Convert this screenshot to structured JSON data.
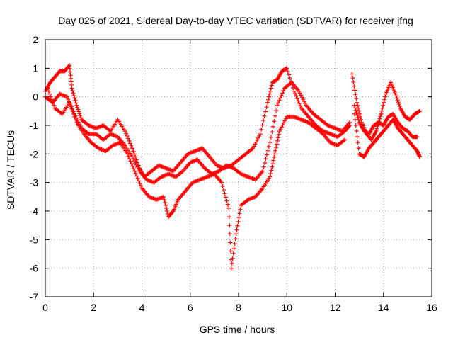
{
  "chart_data": {
    "type": "scatter",
    "title": "Day 025 of 2021, Sidereal Day-to-day VTEC variation (SDTVAR) for receiver jfng",
    "xlabel": "GPS time / hours",
    "ylabel": "SDTVAR / TECUs",
    "xlim": [
      0,
      16
    ],
    "ylim": [
      -7,
      2
    ],
    "xticks": [
      "0",
      "2",
      "4",
      "6",
      "8",
      "10",
      "12",
      "14",
      "16"
    ],
    "yticks": [
      "-7",
      "-6",
      "-5",
      "-4",
      "-3",
      "-2",
      "-1",
      "0",
      "1",
      "2"
    ],
    "grid": true,
    "marker": "+",
    "color": "#ff0000",
    "series": [
      {
        "x": [
          0.0,
          0.2,
          0.4,
          0.6,
          0.8,
          1.0,
          1.1,
          1.3,
          1.5,
          1.8,
          2.1,
          2.4,
          2.7,
          3.0,
          3.3,
          3.6,
          3.9,
          4.1,
          4.4,
          4.7,
          5.0,
          5.3,
          5.6,
          5.9,
          6.2,
          6.5,
          6.8,
          7.1,
          7.4,
          7.7,
          8.0,
          8.3,
          8.6,
          8.9,
          9.2,
          9.4,
          9.6,
          9.8,
          10.0,
          10.3,
          10.6,
          10.9,
          11.2,
          11.5,
          11.8,
          12.1,
          12.4,
          12.6
        ],
        "y": [
          0.2,
          0.5,
          0.7,
          0.9,
          0.9,
          1.1,
          0.3,
          -0.3,
          -0.8,
          -1.0,
          -1.1,
          -1.0,
          -1.2,
          -0.8,
          -1.2,
          -1.8,
          -2.5,
          -2.8,
          -2.6,
          -2.4,
          -2.5,
          -2.6,
          -2.3,
          -2.0,
          -1.9,
          -1.8,
          -2.1,
          -2.4,
          -2.5,
          -2.4,
          -2.2,
          -2.0,
          -1.8,
          -1.3,
          -0.2,
          0.5,
          0.6,
          0.9,
          1.0,
          0.2,
          -0.4,
          -0.7,
          -1.0,
          -1.2,
          -1.3,
          -1.4,
          -1.2,
          -1.0
        ]
      },
      {
        "x": [
          0.0,
          0.3,
          0.6,
          0.9,
          1.2,
          1.5,
          1.8,
          2.1,
          2.4,
          2.7,
          3.0,
          3.3,
          3.6,
          3.9,
          4.2,
          4.5,
          4.8,
          5.1,
          5.4,
          5.7,
          6.0,
          6.3,
          6.6,
          6.9,
          7.2,
          7.5,
          7.8,
          8.1,
          8.4,
          8.7,
          9.0,
          9.3,
          9.6,
          9.9,
          10.2,
          10.5,
          10.8,
          11.1,
          11.4,
          11.7,
          12.0,
          12.3,
          12.6
        ],
        "y": [
          0.0,
          -0.2,
          0.1,
          0.0,
          -0.6,
          -1.1,
          -1.3,
          -1.3,
          -1.5,
          -1.3,
          -1.4,
          -1.7,
          -2.1,
          -2.6,
          -2.9,
          -3.0,
          -2.8,
          -2.7,
          -2.8,
          -2.6,
          -2.3,
          -2.2,
          -2.5,
          -2.7,
          -2.6,
          -2.4,
          -2.5,
          -2.7,
          -2.8,
          -2.9,
          -2.6,
          -1.6,
          -0.3,
          0.3,
          0.5,
          0.2,
          -0.3,
          -0.6,
          -0.8,
          -1.0,
          -1.1,
          -1.2,
          -0.9
        ]
      },
      {
        "x": [
          0.1,
          0.4,
          0.7,
          1.0,
          1.3,
          1.6,
          1.9,
          2.2,
          2.5,
          2.8,
          3.1,
          3.4,
          3.7,
          4.0,
          4.3,
          4.6,
          4.9,
          5.1,
          5.3,
          5.5,
          5.8,
          6.1,
          6.4,
          6.7,
          7.0,
          7.3,
          7.6,
          7.7,
          7.9,
          8.1,
          8.4,
          8.7,
          9.0,
          9.3,
          9.5,
          9.7,
          10.0,
          10.3,
          10.6,
          10.9,
          11.2,
          11.5,
          11.8,
          12.1,
          12.4
        ],
        "y": [
          0.3,
          -0.4,
          -0.6,
          -0.2,
          -0.9,
          -1.3,
          -1.6,
          -1.8,
          -1.9,
          -1.7,
          -1.6,
          -2.0,
          -2.6,
          -3.2,
          -3.5,
          -3.6,
          -3.5,
          -4.2,
          -4.0,
          -3.6,
          -3.3,
          -3.0,
          -2.9,
          -2.8,
          -2.7,
          -3.0,
          -3.9,
          -6.0,
          -4.8,
          -3.8,
          -3.6,
          -3.5,
          -3.2,
          -2.8,
          -2.0,
          -1.2,
          -0.7,
          -0.7,
          -0.8,
          -0.9,
          -1.1,
          -1.3,
          -1.6,
          -1.7,
          -1.5
        ]
      },
      {
        "x": [
          12.7,
          12.9,
          13.1,
          13.3,
          13.5,
          13.7,
          13.9,
          14.1,
          14.3,
          14.5,
          14.7,
          14.9,
          15.1,
          15.3,
          15.5
        ],
        "y": [
          0.8,
          -0.2,
          -0.9,
          -1.3,
          -1.5,
          -1.2,
          -0.6,
          0.1,
          0.5,
          0.1,
          -0.4,
          -0.7,
          -0.8,
          -0.6,
          -0.5
        ]
      },
      {
        "x": [
          12.8,
          13.0,
          13.2,
          13.4,
          13.6,
          13.8,
          14.0,
          14.2,
          14.4,
          14.6,
          14.8,
          15.0,
          15.2,
          15.4,
          15.5
        ],
        "y": [
          -0.6,
          -2.0,
          -2.1,
          -1.8,
          -1.6,
          -1.4,
          -1.2,
          -1.0,
          -0.8,
          -1.1,
          -1.3,
          -1.5,
          -1.7,
          -1.9,
          -2.1
        ]
      },
      {
        "x": [
          12.8,
          13.0,
          13.2,
          13.4,
          13.6,
          13.8,
          14.0,
          14.2,
          14.4,
          14.6,
          14.8,
          15.0,
          15.2,
          15.4
        ],
        "y": [
          -0.3,
          -0.9,
          -1.2,
          -1.3,
          -1.0,
          -0.9,
          -1.0,
          -0.7,
          -0.6,
          -0.9,
          -1.1,
          -1.2,
          -1.4,
          -1.4
        ]
      }
    ]
  }
}
